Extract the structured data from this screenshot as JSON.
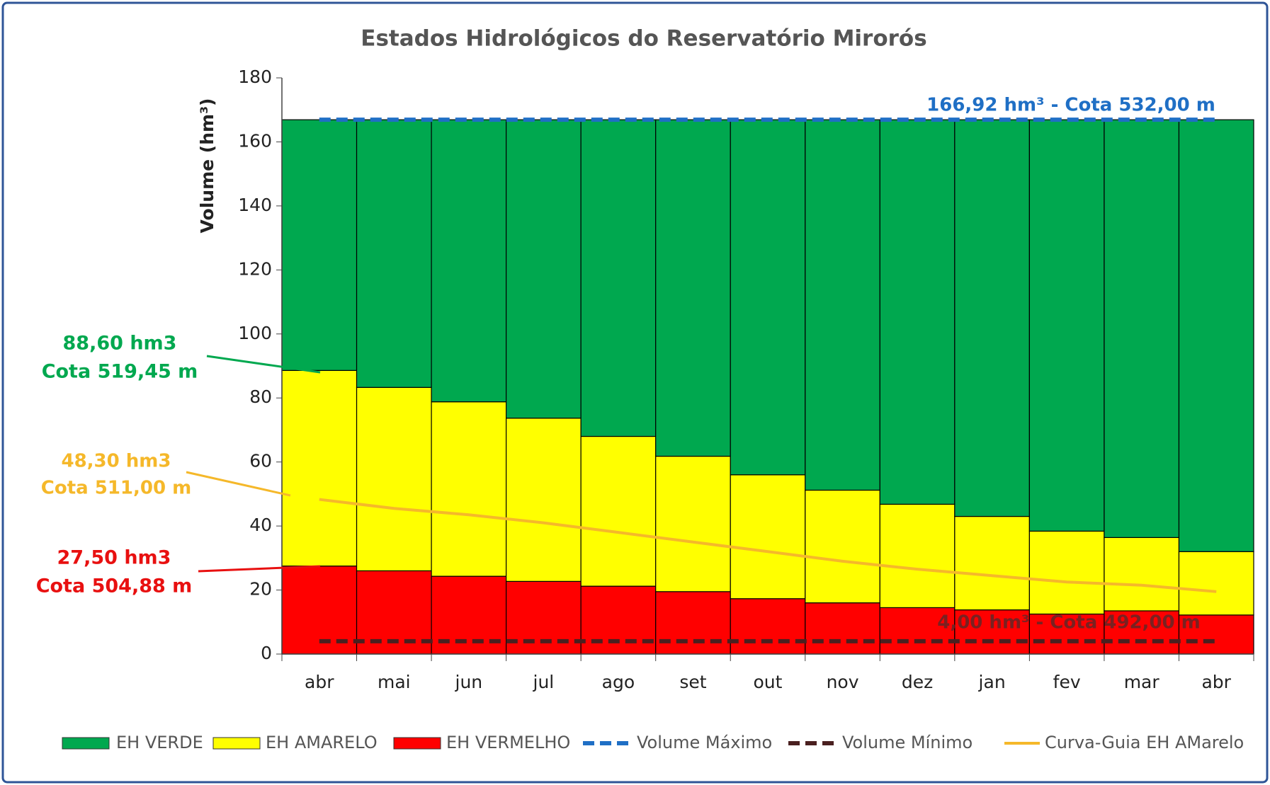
{
  "chart_data": {
    "type": "bar",
    "stacked": true,
    "title": "Estados Hidrológicos do Reservatório Mirorós",
    "y_label": "Volume (hm³)",
    "categories": [
      "abr",
      "mai",
      "jun",
      "jul",
      "ago",
      "set",
      "out",
      "nov",
      "dez",
      "jan",
      "fev",
      "mar",
      "abr"
    ],
    "series": [
      {
        "name": "EH VERDE",
        "color": "#00a84f",
        "values": [
          78.32,
          83.62,
          88.12,
          93.22,
          98.92,
          105.12,
          110.92,
          115.72,
          120.12,
          123.92,
          128.52,
          130.52,
          134.92
        ]
      },
      {
        "name": "EH AMARELO",
        "color": "#ffff00",
        "values": [
          61.1,
          57.3,
          54.5,
          51,
          46.8,
          42.3,
          38.7,
          35.2,
          32.3,
          29.2,
          25.9,
          22.9,
          19.8
        ]
      },
      {
        "name": "EH VERMELHO",
        "color": "#ff0000",
        "values": [
          27.5,
          26,
          24.3,
          22.7,
          21.2,
          19.5,
          17.3,
          16,
          14.5,
          13.8,
          12.5,
          13.5,
          12.2
        ]
      }
    ],
    "lines": [
      {
        "name": "Volume Máximo",
        "color": "#1f6fc5",
        "dash": true,
        "value": 166.92
      },
      {
        "name": "Volume Mínimo",
        "color": "#4a2020",
        "dash": true,
        "value": 4
      },
      {
        "name": "Curva-Guia EH AMarelo",
        "color": "#f5b82a",
        "dash": false,
        "values": [
          48.3,
          45.5,
          43.5,
          41,
          38,
          35,
          32,
          29,
          26.5,
          24.5,
          22.5,
          21.5,
          19.5
        ]
      }
    ],
    "annotations": [
      {
        "text": "166,92 hm³ - Cota 532,00 m",
        "color": "#1f6fc5"
      },
      {
        "text": "4,00 hm³ - Cota 492,00 m",
        "color": "#5a2a2a"
      },
      {
        "text": "88,60 hm3",
        "color": "#00a84f"
      },
      {
        "text": "Cota 519,45 m",
        "color": "#00a84f"
      },
      {
        "text": "48,30 hm3",
        "color": "#f5b82a"
      },
      {
        "text": "Cota 511,00 m",
        "color": "#f5b82a"
      },
      {
        "text": "27,50 hm3",
        "color": "#e81010"
      },
      {
        "text": "Cota 504,88 m",
        "color": "#e81010"
      }
    ],
    "ylim": [
      0,
      180
    ],
    "yticks": [
      0,
      20,
      40,
      60,
      80,
      100,
      120,
      140,
      160,
      180
    ],
    "grid": false
  }
}
